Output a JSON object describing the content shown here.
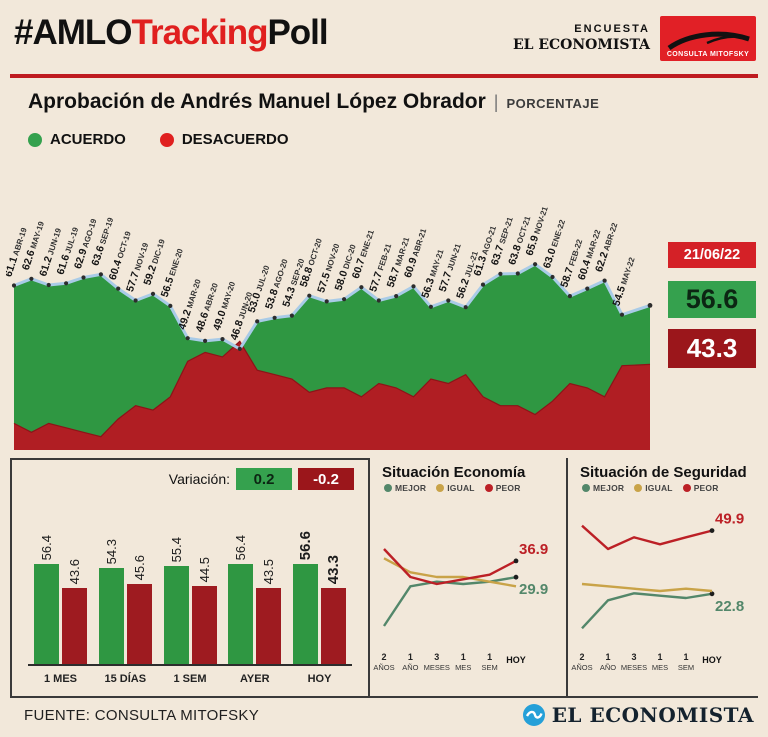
{
  "header": {
    "title_amlo": "#AMLO",
    "title_tracking": "Tracking",
    "title_poll": "Poll",
    "encuesta": "ENCUESTA",
    "el_economista": "EL ECONOMISTA",
    "consulta_mitofsky": "CONSULTA MITOFSKY"
  },
  "title": {
    "main": "Aprobación de Andrés Manuel López Obrador",
    "separator": "|",
    "unit": "PORCENTAJE"
  },
  "legend": {
    "acuerdo": "ACUERDO",
    "desacuerdo": "DESACUERDO"
  },
  "current": {
    "date": "21/06/22",
    "acuerdo": "56.6",
    "desacuerdo": "43.3"
  },
  "variacion": {
    "label": "Variación:",
    "acuerdo": "0.2",
    "desacuerdo": "-0.2"
  },
  "footer": {
    "source": "FUENTE: CONSULTA MITOFSKY",
    "brand": "EL ECONOMISTA"
  },
  "colors": {
    "background": "#f2e8da",
    "accent_red": "#e0201f",
    "rule_red": "#bf1b20",
    "chart_green": "#2f9742",
    "chart_red": "#b01e23",
    "bar_red": "#9e1b20",
    "blue_line": "#a9cbe7",
    "line_tan": "#c9a348",
    "line_green": "#53876a",
    "line_red": "#bc2026"
  },
  "chart_data": [
    {
      "name": "aprobacion_tracking",
      "type": "area",
      "title": "Aprobación de Andrés Manuel López Obrador (PORCENTAJE)",
      "legend_position": "top-left",
      "ylim": [
        24,
        70
      ],
      "categories": [
        "ABR-19",
        "MAY-19",
        "JUN-19",
        "JUL-19",
        "AGO-19",
        "SEP-19",
        "OCT-19",
        "NOV-19",
        "DIC-19",
        "ENE-20",
        "MAR-20",
        "ABR-20",
        "MAY-20",
        "JUN-20",
        "JUL-20",
        "AGO-20",
        "SEP-20",
        "OCT-20",
        "NOV-20",
        "DIC-20",
        "ENE-21",
        "FEB-21",
        "MAR-21",
        "ABR-21",
        "MAY-21",
        "JUN-21",
        "JUL-21",
        "AGO-21",
        "SEP-21",
        "OCT-21",
        "NOV-21",
        "ENE-22",
        "FEB-22",
        "MAR-22",
        "ABR-22",
        "MAY-22"
      ],
      "series": [
        {
          "name": "ACUERDO",
          "color": "#2f9742",
          "values": [
            61.1,
            62.6,
            61.2,
            61.6,
            62.9,
            63.6,
            60.4,
            57.7,
            59.2,
            56.5,
            49.2,
            48.6,
            49.0,
            46.8,
            53.0,
            53.8,
            54.3,
            58.8,
            57.5,
            58.0,
            60.7,
            57.7,
            58.7,
            60.9,
            56.3,
            57.7,
            56.2,
            61.3,
            63.7,
            63.8,
            65.9,
            63.0,
            58.7,
            60.4,
            62.2,
            54.5
          ]
        },
        {
          "name": "DESACUERDO",
          "color": "#b01e23",
          "estimated": true,
          "values": [
            30,
            28,
            30,
            29,
            28,
            27,
            31,
            34,
            33,
            36,
            44,
            46,
            45,
            48.5,
            42,
            41,
            40,
            37,
            38,
            38,
            36,
            39,
            38,
            36,
            40,
            39,
            41,
            36,
            34,
            34,
            32,
            35,
            39,
            38,
            36,
            43
          ]
        }
      ],
      "latest": {
        "date": "21/06/22",
        "acuerdo": 56.6,
        "desacuerdo": 43.3
      }
    },
    {
      "name": "variacion_bars",
      "type": "bar",
      "categories": [
        "1 MES",
        "15 DÍAS",
        "1 SEM",
        "AYER",
        "HOY"
      ],
      "series": [
        {
          "name": "ACUERDO",
          "color": "#2f9742",
          "values": [
            56.4,
            54.3,
            55.4,
            56.4,
            56.6
          ]
        },
        {
          "name": "DESACUERDO",
          "color": "#9e1b20",
          "values": [
            43.6,
            45.6,
            44.5,
            43.5,
            43.3
          ]
        }
      ]
    },
    {
      "name": "situacion_economia",
      "type": "line",
      "title": "Situación Economía",
      "ylim": [
        0,
        60
      ],
      "categories": [
        "2 AÑOS",
        "1 AÑO",
        "3 MESES",
        "1 MES",
        "1 SEM",
        "HOY"
      ],
      "series": [
        {
          "name": "MEJOR",
          "color": "#53876a",
          "estimated": true,
          "values": [
            9,
            26,
            28,
            27,
            28,
            29.9
          ],
          "last_label": "29.9"
        },
        {
          "name": "IGUAL",
          "color": "#c9a348",
          "estimated": true,
          "values": [
            38,
            32,
            30,
            30,
            28,
            26
          ]
        },
        {
          "name": "PEOR",
          "color": "#bc2026",
          "estimated": true,
          "values": [
            42,
            30,
            27,
            29,
            31,
            36.9
          ],
          "last_label": "36.9"
        }
      ]
    },
    {
      "name": "situacion_seguridad",
      "type": "line",
      "title": "Situación de Seguridad",
      "ylim": [
        0,
        60
      ],
      "categories": [
        "2 AÑOS",
        "1 AÑO",
        "3 MESES",
        "1 MES",
        "1 SEM",
        "HOY"
      ],
      "series": [
        {
          "name": "MEJOR",
          "color": "#53876a",
          "estimated": true,
          "values": [
            8,
            20,
            23,
            22,
            21,
            22.8
          ],
          "last_label": "22.8"
        },
        {
          "name": "IGUAL",
          "color": "#c9a348",
          "estimated": true,
          "values": [
            27,
            26,
            25,
            24,
            25,
            24
          ]
        },
        {
          "name": "PEOR",
          "color": "#bc2026",
          "estimated": true,
          "values": [
            52,
            42,
            47,
            44,
            47,
            49.9
          ],
          "last_label": "49.9"
        }
      ]
    }
  ]
}
